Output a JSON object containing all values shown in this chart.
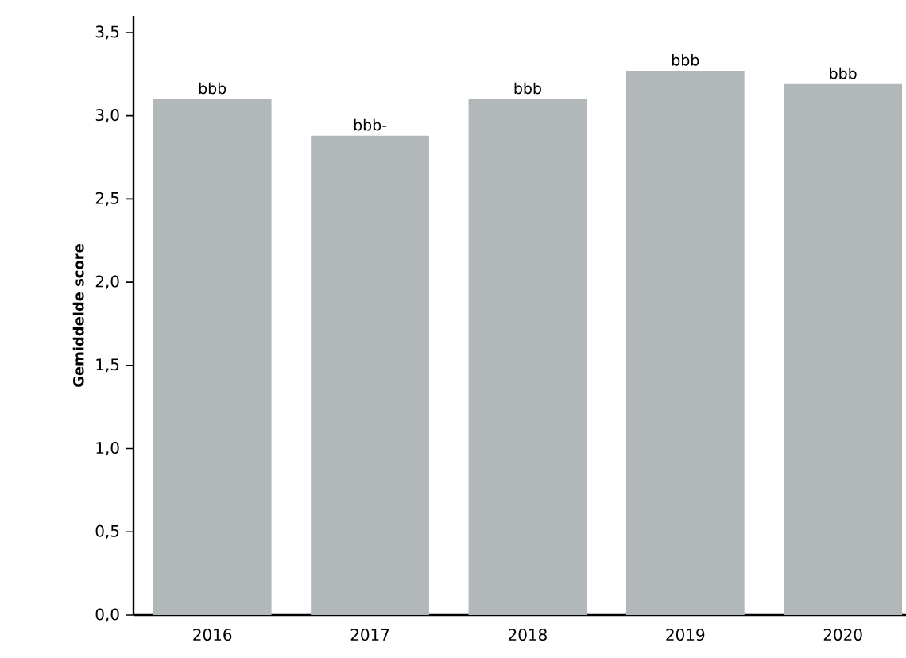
{
  "chart_data": {
    "type": "bar",
    "ylabel": "Gemiddelde score",
    "categories": [
      "2016",
      "2017",
      "2018",
      "2019",
      "2020"
    ],
    "values": [
      3.1,
      2.88,
      3.1,
      3.27,
      3.19
    ],
    "value_labels": [
      "bbb",
      "bbb-",
      "bbb",
      "bbb",
      "bbb"
    ],
    "color": "#b2b7ba",
    "ylim": [
      0,
      3.6
    ],
    "yticks": [
      {
        "value": 0,
        "label": "0,0"
      },
      {
        "value": 0.5,
        "label": "0,5"
      },
      {
        "value": 1,
        "label": "1,0"
      },
      {
        "value": 1.5,
        "label": "1,5"
      },
      {
        "value": 2,
        "label": "2,0"
      },
      {
        "value": 2.5,
        "label": "2,5"
      },
      {
        "value": 3,
        "label": "3,0"
      },
      {
        "value": 3.5,
        "label": "3,5"
      }
    ],
    "grid": false
  }
}
